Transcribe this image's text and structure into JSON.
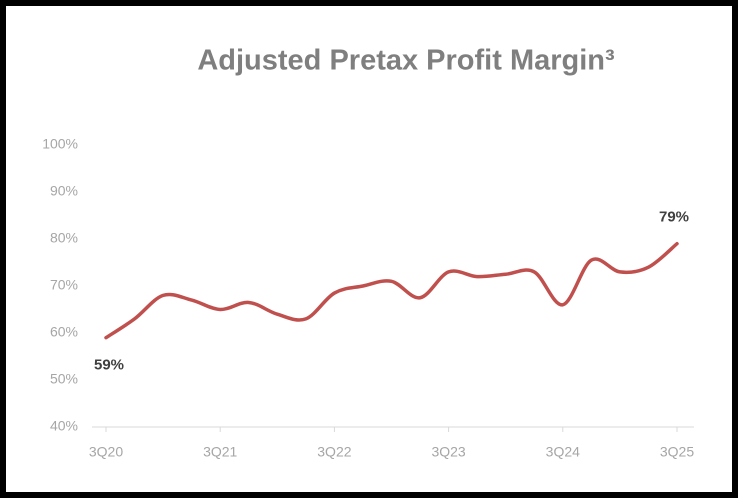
{
  "chart_data": {
    "type": "line",
    "title": "Adjusted Pretax Profit Margin³",
    "categories": [
      "3Q20",
      null,
      null,
      null,
      "3Q21",
      null,
      null,
      null,
      "3Q22",
      null,
      null,
      null,
      "3Q23",
      null,
      null,
      null,
      "3Q24",
      null,
      null,
      null,
      "3Q25"
    ],
    "series": [
      {
        "color": "#c0504d",
        "values": [
          59,
          63,
          68,
          67,
          65,
          66.5,
          64,
          63,
          68.5,
          70,
          71,
          67.5,
          73,
          72,
          72.5,
          73,
          66,
          75.5,
          73,
          74,
          79
        ],
        "value_labels": [
          "59%",
          null,
          null,
          null,
          null,
          null,
          null,
          null,
          null,
          null,
          null,
          null,
          null,
          null,
          null,
          null,
          null,
          null,
          null,
          null,
          "79%"
        ]
      }
    ],
    "ylim": [
      40,
      100
    ],
    "yticks": [
      {
        "value": 40,
        "label": "40%"
      },
      {
        "value": 50,
        "label": "50%"
      },
      {
        "value": 60,
        "label": "60%"
      },
      {
        "value": 70,
        "label": "70%"
      },
      {
        "value": 80,
        "label": "80%"
      },
      {
        "value": 90,
        "label": "90%"
      },
      {
        "value": 100,
        "label": "100%"
      }
    ],
    "grid": false
  }
}
